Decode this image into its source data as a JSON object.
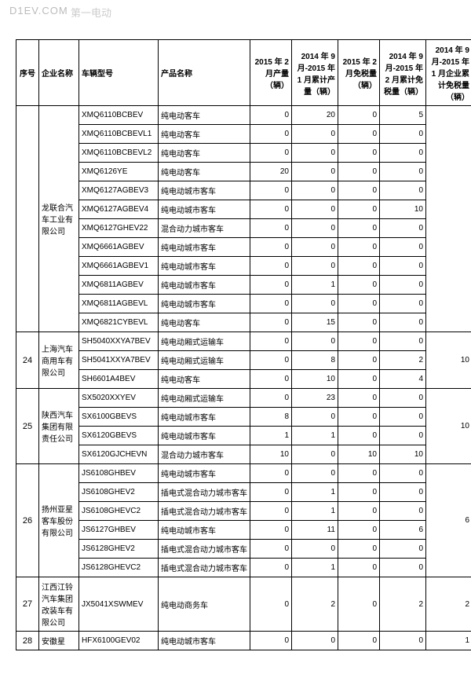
{
  "watermark": {
    "domain": "D1EV.COM",
    "brand": "第一电动"
  },
  "headers": {
    "seq": "序号",
    "comp": "企业名称",
    "model": "车辆型号",
    "prod": "产品名称",
    "c1": "2015 年 2 月产量（辆）",
    "c2": "2014 年 9 月-2015 年 1 月累计产量（辆）",
    "c3": "2015 年 2 月免税量（辆）",
    "c4": "2014 年 9 月-2015 年 2 月累计免税量（辆）",
    "c5": "2014 年 9 月-2015 年 1 月企业累计免税量（辆）"
  },
  "groups": [
    {
      "seq": "",
      "comp": "龙联合汽车工业有限公司",
      "c5": "",
      "rows": [
        {
          "m": "XMQ6110BCBEV",
          "p": "纯电动客车",
          "v": [
            "0",
            "20",
            "0",
            "5"
          ]
        },
        {
          "m": "XMQ6110BCBEVL1",
          "p": "纯电动客车",
          "v": [
            "0",
            "0",
            "0",
            "0"
          ]
        },
        {
          "m": "XMQ6110BCBEVL2",
          "p": "纯电动客车",
          "v": [
            "0",
            "0",
            "0",
            "0"
          ]
        },
        {
          "m": "XMQ6126YE",
          "p": "纯电动客车",
          "v": [
            "20",
            "0",
            "0",
            "0"
          ]
        },
        {
          "m": "XMQ6127AGBEV3",
          "p": "纯电动城市客车",
          "v": [
            "0",
            "0",
            "0",
            "0"
          ]
        },
        {
          "m": "XMQ6127AGBEV4",
          "p": "纯电动城市客车",
          "v": [
            "0",
            "0",
            "0",
            "10"
          ]
        },
        {
          "m": "XMQ6127GHEV22",
          "p": "混合动力城市客车",
          "v": [
            "0",
            "0",
            "0",
            "0"
          ]
        },
        {
          "m": "XMQ6661AGBEV",
          "p": "纯电动城市客车",
          "v": [
            "0",
            "0",
            "0",
            "0"
          ]
        },
        {
          "m": "XMQ6661AGBEV1",
          "p": "纯电动城市客车",
          "v": [
            "0",
            "0",
            "0",
            "0"
          ]
        },
        {
          "m": "XMQ6811AGBEV",
          "p": "纯电动城市客车",
          "v": [
            "0",
            "1",
            "0",
            "0"
          ]
        },
        {
          "m": "XMQ6811AGBEVL",
          "p": "纯电动城市客车",
          "v": [
            "0",
            "0",
            "0",
            "0"
          ]
        },
        {
          "m": "XMQ6821CYBEVL",
          "p": "纯电动客车",
          "v": [
            "0",
            "15",
            "0",
            "0"
          ]
        }
      ]
    },
    {
      "seq": "24",
      "comp": "上海汽车商用车有限公司",
      "c5": "10",
      "rows": [
        {
          "m": "SH5040XXYA7BEV",
          "p": "纯电动厢式运输车",
          "v": [
            "0",
            "0",
            "0",
            "0"
          ]
        },
        {
          "m": "SH5041XXYA7BEV",
          "p": "纯电动厢式运输车",
          "v": [
            "0",
            "8",
            "0",
            "2"
          ]
        },
        {
          "m": "SH6601A4BEV",
          "p": "纯电动客车",
          "v": [
            "0",
            "10",
            "0",
            "4"
          ]
        }
      ]
    },
    {
      "seq": "25",
      "comp": "陕西汽车集团有限责任公司",
      "c5": "10",
      "rows": [
        {
          "m": "SX5020XXYEV",
          "p": "纯电动厢式运输车",
          "v": [
            "0",
            "23",
            "0",
            "0"
          ]
        },
        {
          "m": "SX6100GBEVS",
          "p": "纯电动城市客车",
          "v": [
            "8",
            "0",
            "0",
            "0"
          ]
        },
        {
          "m": "SX6120GBEVS",
          "p": "纯电动城市客车",
          "v": [
            "1",
            "1",
            "0",
            "0"
          ]
        },
        {
          "m": "SX6120GJCHEVN",
          "p": "混合动力城市客车",
          "v": [
            "10",
            "0",
            "10",
            "10"
          ]
        }
      ]
    },
    {
      "seq": "26",
      "comp": "扬州亚星客车股份有限公司",
      "c5": "6",
      "rows": [
        {
          "m": "JS6108GHBEV",
          "p": "纯电动城市客车",
          "v": [
            "0",
            "0",
            "0",
            "0"
          ]
        },
        {
          "m": "JS6108GHEV2",
          "p": "插电式混合动力城市客车",
          "v": [
            "0",
            "1",
            "0",
            "0"
          ]
        },
        {
          "m": "JS6108GHEVC2",
          "p": "插电式混合动力城市客车",
          "v": [
            "0",
            "1",
            "0",
            "0"
          ]
        },
        {
          "m": "JS6127GHBEV",
          "p": "纯电动城市客车",
          "v": [
            "0",
            "11",
            "0",
            "6"
          ]
        },
        {
          "m": "JS6128GHEV2",
          "p": "插电式混合动力城市客车",
          "v": [
            "0",
            "0",
            "0",
            "0"
          ]
        },
        {
          "m": "JS6128GHEVC2",
          "p": "插电式混合动力城市客车",
          "v": [
            "0",
            "1",
            "0",
            "0"
          ]
        }
      ]
    },
    {
      "seq": "27",
      "comp": "江西江铃汽车集团改装车有限公司",
      "c5": "2",
      "rows": [
        {
          "m": "JX5041XSWMEV",
          "p": "纯电动商务车",
          "v": [
            "0",
            "2",
            "0",
            "2"
          ]
        }
      ]
    },
    {
      "seq": "28",
      "comp": "安徽星",
      "c5": "1",
      "rows": [
        {
          "m": "HFX6100GEV02",
          "p": "纯电动城市客车",
          "v": [
            "0",
            "0",
            "0",
            "0"
          ]
        }
      ]
    }
  ]
}
